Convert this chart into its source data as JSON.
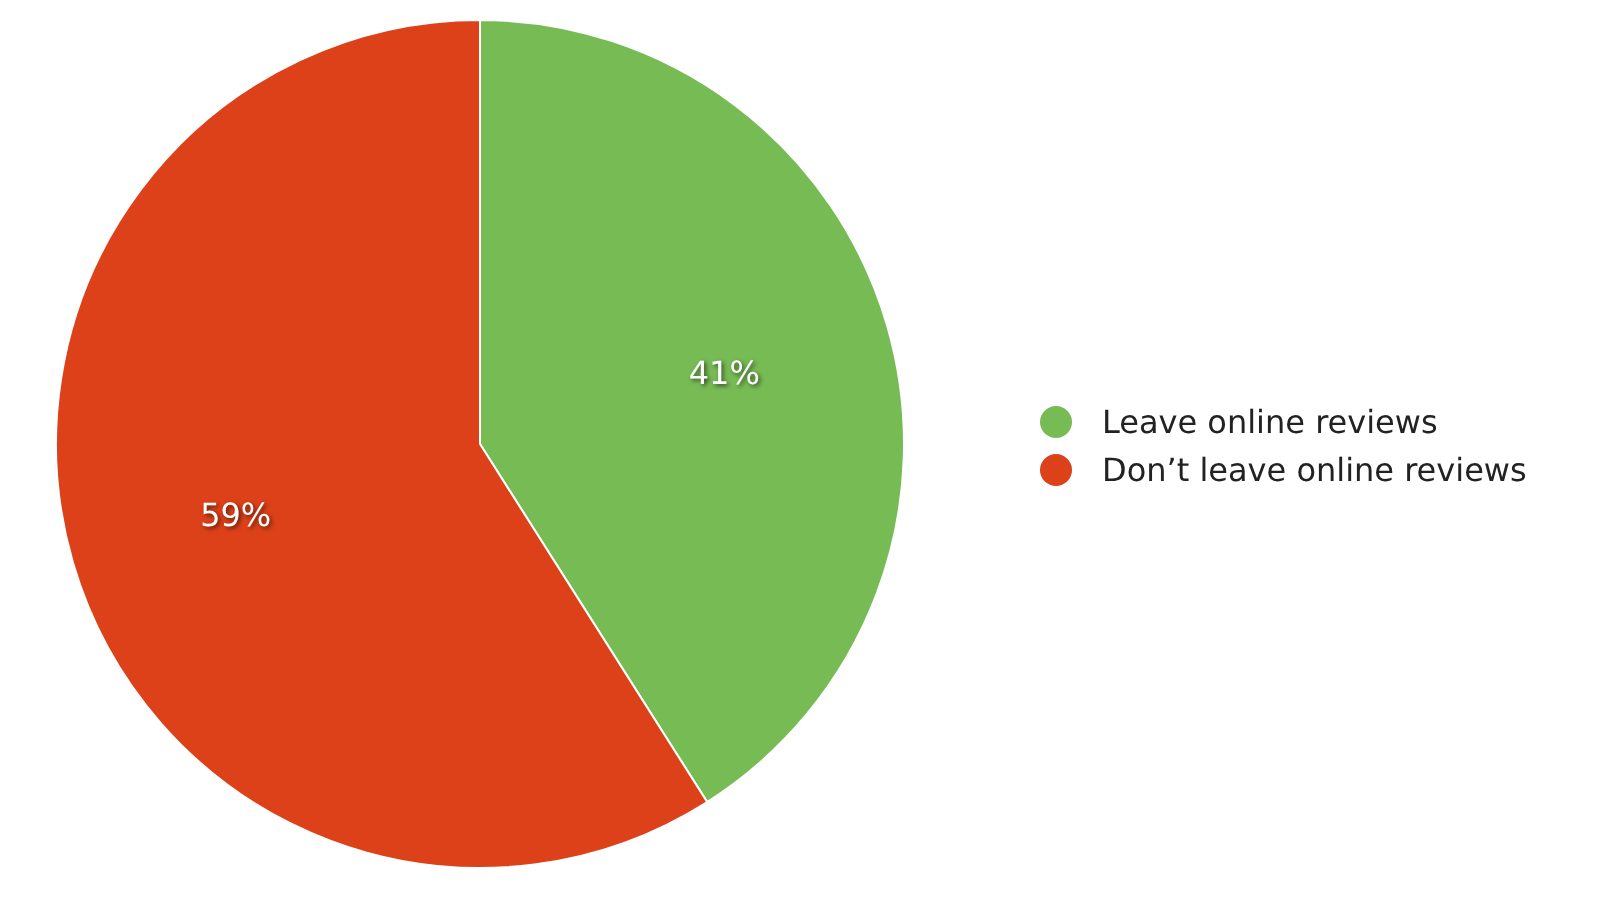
{
  "chart_data": {
    "type": "pie",
    "categories": [
      "Leave online reviews",
      "Don’t leave online reviews"
    ],
    "values": [
      41,
      59
    ],
    "colors": [
      "#77bb55",
      "#dd4119"
    ],
    "value_labels": [
      "41%",
      "59%"
    ],
    "legend": "right"
  }
}
